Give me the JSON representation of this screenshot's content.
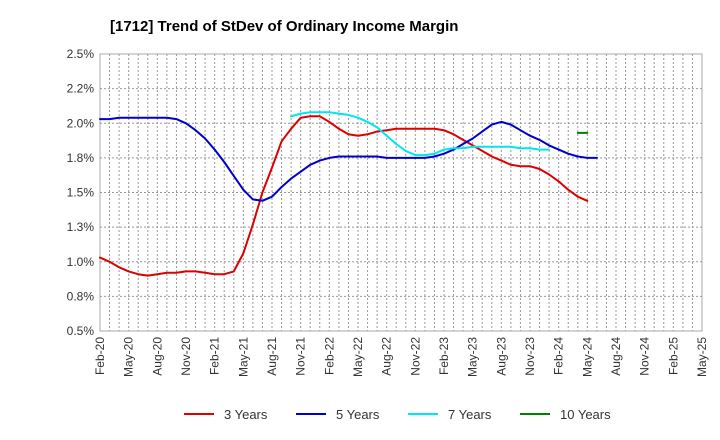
{
  "chart_data": {
    "type": "line",
    "title": "[1712]  Trend of StDev of Ordinary Income Margin",
    "xlabel": "",
    "ylabel": "",
    "ylim": [
      0.5,
      2.5
    ],
    "y_ticks": [
      "0.5%",
      "0.8%",
      "1.0%",
      "1.3%",
      "1.5%",
      "1.8%",
      "2.0%",
      "2.2%",
      "2.5%"
    ],
    "x_ticks": [
      "Feb-20",
      "May-20",
      "Aug-20",
      "Nov-20",
      "Feb-21",
      "May-21",
      "Aug-21",
      "Nov-21",
      "Feb-22",
      "May-22",
      "Aug-22",
      "Nov-22",
      "Feb-23",
      "May-23",
      "Aug-23",
      "Nov-23",
      "Feb-24",
      "May-24",
      "Aug-24",
      "Nov-24",
      "Feb-25",
      "May-25"
    ],
    "grid": true,
    "legend_position": "bottom",
    "series": [
      {
        "name": "3 Years",
        "color": "#dd0000",
        "values": [
          1.03,
          1.0,
          0.96,
          0.93,
          0.91,
          0.9,
          0.91,
          0.92,
          0.92,
          0.93,
          0.93,
          0.92,
          0.91,
          0.91,
          0.93,
          1.06,
          1.27,
          1.5,
          1.68,
          1.87,
          1.96,
          2.04,
          2.05,
          2.05,
          2.01,
          1.96,
          1.92,
          1.91,
          1.92,
          1.94,
          1.95,
          1.96,
          1.96,
          1.96,
          1.96,
          1.96,
          1.95,
          1.92,
          1.88,
          1.84,
          1.8,
          1.76,
          1.73,
          1.7,
          1.69,
          1.69,
          1.67,
          1.63,
          1.58,
          1.52,
          1.47,
          1.44
        ]
      },
      {
        "name": "5 Years",
        "color": "#0000cc",
        "values": [
          2.03,
          2.03,
          2.04,
          2.04,
          2.04,
          2.04,
          2.04,
          2.04,
          2.03,
          2.0,
          1.95,
          1.89,
          1.81,
          1.72,
          1.62,
          1.52,
          1.45,
          1.44,
          1.47,
          1.54,
          1.6,
          1.65,
          1.7,
          1.73,
          1.75,
          1.76,
          1.76,
          1.76,
          1.76,
          1.76,
          1.75,
          1.75,
          1.75,
          1.75,
          1.75,
          1.76,
          1.78,
          1.81,
          1.85,
          1.89,
          1.94,
          1.99,
          2.01,
          1.99,
          1.95,
          1.91,
          1.88,
          1.84,
          1.81,
          1.78,
          1.76,
          1.75,
          1.75
        ]
      },
      {
        "name": "7 Years",
        "color": "#00e5ee",
        "start_index": 20,
        "values": [
          2.05,
          2.07,
          2.08,
          2.08,
          2.08,
          2.07,
          2.06,
          2.04,
          2.01,
          1.97,
          1.91,
          1.85,
          1.8,
          1.77,
          1.77,
          1.78,
          1.81,
          1.82,
          1.82,
          1.83,
          1.83,
          1.83,
          1.83,
          1.83,
          1.82,
          1.82,
          1.81,
          1.81
        ]
      },
      {
        "name": "10 Years",
        "color": "#008000",
        "start_index": 50,
        "values": [
          1.93,
          1.93
        ]
      }
    ]
  }
}
